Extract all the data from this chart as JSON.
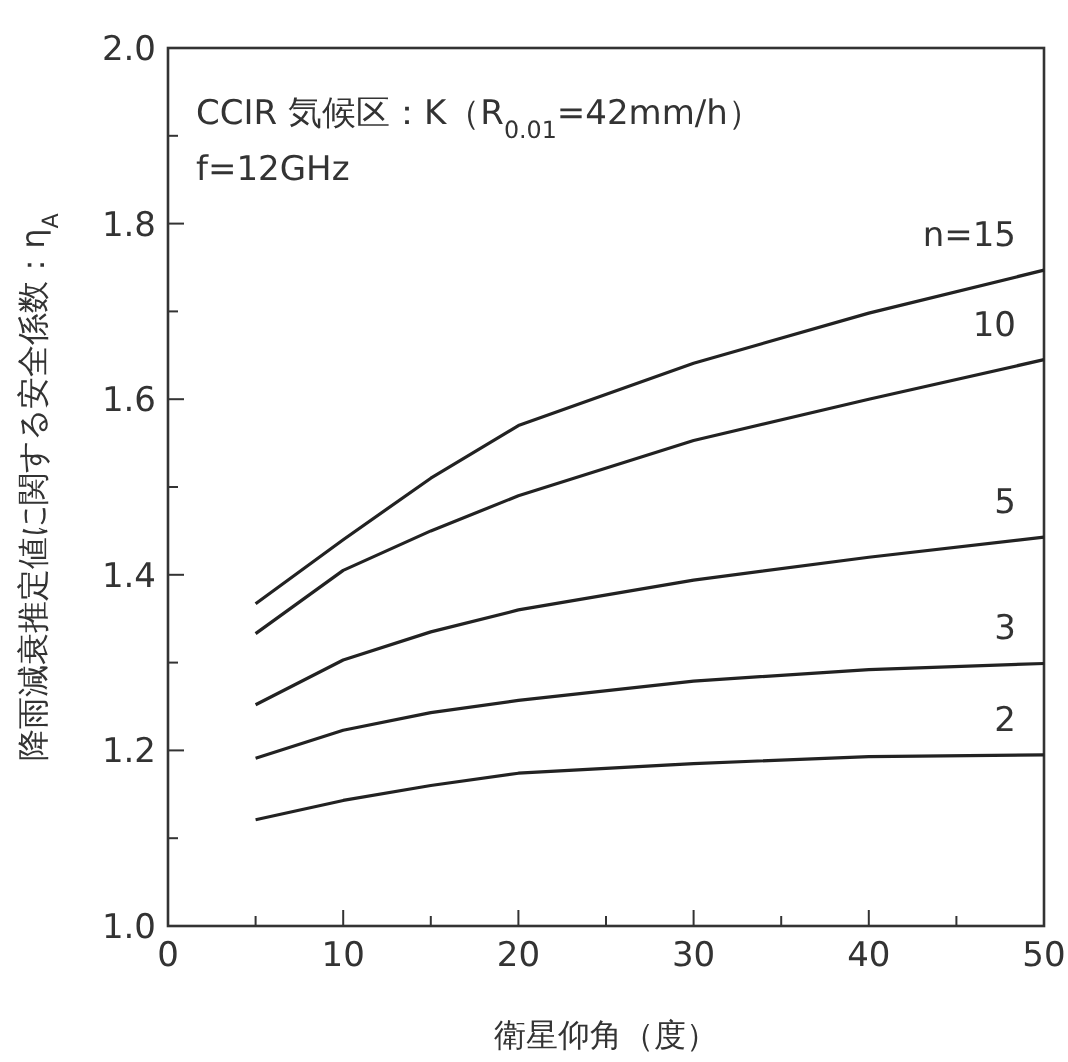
{
  "chart_data": {
    "type": "line",
    "xlabel": "衛星仰角（度）",
    "ylabel": "降雨減衰推定値に関する安全係数：η$_{A}$",
    "annotations": [
      "CCIR 気候区：K（R$_{0.01}$=42mm/h）",
      "f=12GHz"
    ],
    "x": [
      5,
      10,
      15,
      20,
      30,
      40,
      50
    ],
    "series": [
      {
        "name": "n=15",
        "color": "#222222",
        "values": [
          1.367,
          1.44,
          1.51,
          1.57,
          1.641,
          1.698,
          1.747
        ]
      },
      {
        "name": "10",
        "color": "#222222",
        "values": [
          1.333,
          1.405,
          1.45,
          1.49,
          1.553,
          1.6,
          1.645
        ]
      },
      {
        "name": "5",
        "color": "#222222",
        "values": [
          1.252,
          1.303,
          1.335,
          1.36,
          1.394,
          1.42,
          1.443
        ]
      },
      {
        "name": "3",
        "color": "#222222",
        "values": [
          1.191,
          1.223,
          1.243,
          1.257,
          1.279,
          1.292,
          1.299
        ]
      },
      {
        "name": "2",
        "color": "#222222",
        "values": [
          1.121,
          1.143,
          1.16,
          1.174,
          1.185,
          1.193,
          1.195
        ]
      }
    ],
    "xlim": [
      0,
      50
    ],
    "ylim": [
      1,
      2
    ],
    "xticks": [
      0,
      {
        "value": 5,
        "label": null
      },
      10,
      {
        "value": 15,
        "label": null
      },
      20,
      {
        "value": 25,
        "label": null
      },
      30,
      {
        "value": 35,
        "label": null
      },
      40,
      {
        "value": 45,
        "label": null
      },
      50
    ],
    "yticks": [
      {
        "value": 1,
        "label": "1.0"
      },
      {
        "value": 1.1,
        "label": null
      },
      {
        "value": 1.2,
        "label": "1.2"
      },
      {
        "value": 1.3,
        "label": null
      },
      {
        "value": 1.4,
        "label": "1.4"
      },
      {
        "value": 1.5,
        "label": null
      },
      {
        "value": 1.6,
        "label": "1.6"
      },
      {
        "value": 1.7,
        "label": null
      },
      {
        "value": 1.8,
        "label": "1.8"
      },
      {
        "value": 1.9,
        "label": null
      },
      {
        "value": 2,
        "label": "2.0"
      }
    ],
    "grid": false,
    "legend": false,
    "marker": "none",
    "line_style": "solid"
  }
}
